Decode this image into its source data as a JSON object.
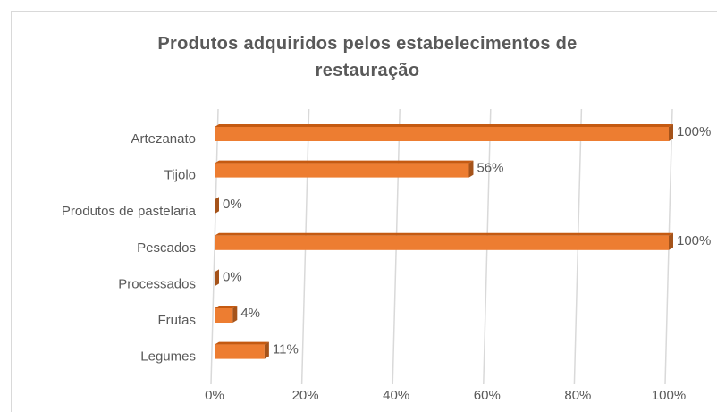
{
  "chart_data": {
    "type": "bar",
    "orientation": "horizontal",
    "title": "Produtos adquiridos pelos estabelecimentos de restauração",
    "categories": [
      "Artezanato",
      "Tijolo",
      "Produtos de pastelaria",
      "Pescados",
      "Processados",
      "Frutas",
      "Legumes"
    ],
    "values": [
      100,
      56,
      0,
      100,
      0,
      4,
      11
    ],
    "value_labels": [
      "100%",
      "56%",
      "0%",
      "100%",
      "0%",
      "4%",
      "11%"
    ],
    "color": "#ed7d31",
    "xlim": [
      0,
      100
    ],
    "xticks": [
      {
        "value": 0,
        "label": "0%"
      },
      {
        "value": 20,
        "label": "20%"
      },
      {
        "value": 40,
        "label": "40%"
      },
      {
        "value": 60,
        "label": "60%"
      },
      {
        "value": 80,
        "label": "80%"
      },
      {
        "value": 100,
        "label": "100%"
      }
    ],
    "grid": true
  }
}
